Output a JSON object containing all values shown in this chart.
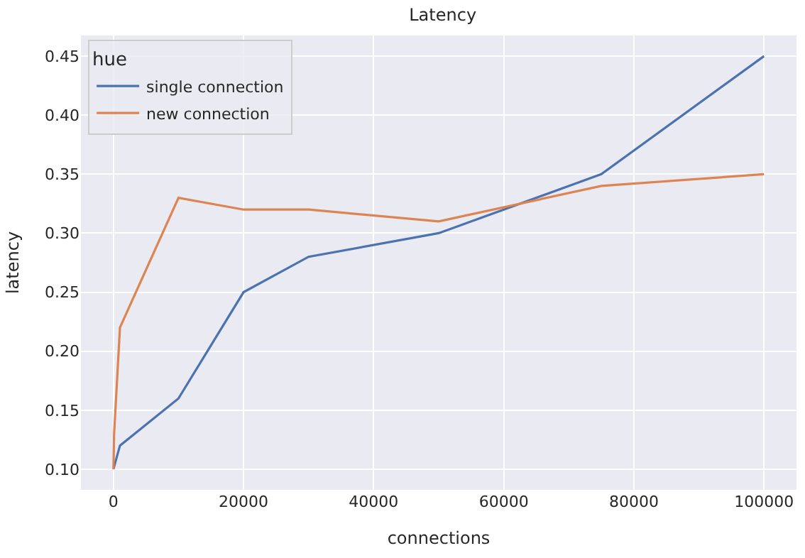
{
  "chart_data": {
    "type": "line",
    "title": "Latency",
    "xlabel": "connections",
    "ylabel": "latency",
    "legend_title": "hue",
    "series": [
      {
        "name": "single connection",
        "color": "#4c72b0",
        "x": [
          1,
          1000,
          10000,
          20000,
          30000,
          50000,
          75000,
          100000
        ],
        "values": [
          0.1,
          0.12,
          0.16,
          0.25,
          0.28,
          0.3,
          0.35,
          0.45
        ]
      },
      {
        "name": "new connection",
        "color": "#dd8452",
        "x": [
          1,
          100,
          1000,
          10000,
          20000,
          30000,
          50000,
          75000,
          100000
        ],
        "values": [
          0.1,
          0.13,
          0.22,
          0.33,
          0.32,
          0.32,
          0.31,
          0.34,
          0.35
        ]
      }
    ],
    "xlim": [
      -5000,
      105000
    ],
    "ylim": [
      0.0825,
      0.4675
    ],
    "xticks": [
      0,
      20000,
      40000,
      60000,
      80000,
      100000
    ],
    "yticks": [
      {
        "value": 0.1,
        "label": "0.10"
      },
      {
        "value": 0.15,
        "label": "0.15"
      },
      {
        "value": 0.2,
        "label": "0.20"
      },
      {
        "value": 0.25,
        "label": "0.25"
      },
      {
        "value": 0.3,
        "label": "0.30"
      },
      {
        "value": 0.35,
        "label": "0.35"
      },
      {
        "value": 0.4,
        "label": "0.40"
      },
      {
        "value": 0.45,
        "label": "0.45"
      }
    ],
    "grid": true,
    "legend": "top left",
    "marker": "none",
    "line_style": "solid"
  }
}
